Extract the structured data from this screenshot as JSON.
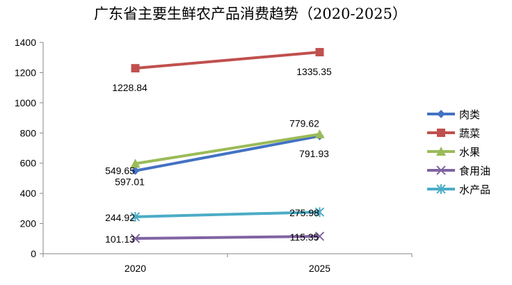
{
  "chart_data": {
    "type": "line",
    "title": "广东省主要生鲜农产品消费趋势（2020-2025）",
    "xlabel": "",
    "ylabel": "",
    "categories": [
      "2020",
      "2025"
    ],
    "ylim": [
      0,
      1400
    ],
    "yticks": [
      0,
      200,
      400,
      600,
      800,
      1000,
      1200,
      1400
    ],
    "grid": false,
    "legend_position": "right",
    "series": [
      {
        "name": "肉类",
        "values": [
          549.65,
          779.62
        ],
        "labels": [
          "549.65",
          "779.62"
        ],
        "color": "#4472C4",
        "marker": "diamond"
      },
      {
        "name": "蔬菜",
        "values": [
          1228.84,
          1335.35
        ],
        "labels": [
          "1228.84",
          "1335.35"
        ],
        "color": "#C0504D",
        "marker": "square"
      },
      {
        "name": "水果",
        "values": [
          597.01,
          791.93
        ],
        "labels": [
          "597.01",
          "791.93"
        ],
        "color": "#9BBB59",
        "marker": "triangle"
      },
      {
        "name": "食用油",
        "values": [
          101.13,
          115.35
        ],
        "labels": [
          "101.13",
          "115.35"
        ],
        "color": "#8064A2",
        "marker": "x"
      },
      {
        "name": "水产品",
        "values": [
          244.92,
          275.98
        ],
        "labels": [
          "244.92",
          "275.98"
        ],
        "color": "#4BACC6",
        "marker": "star"
      }
    ]
  }
}
